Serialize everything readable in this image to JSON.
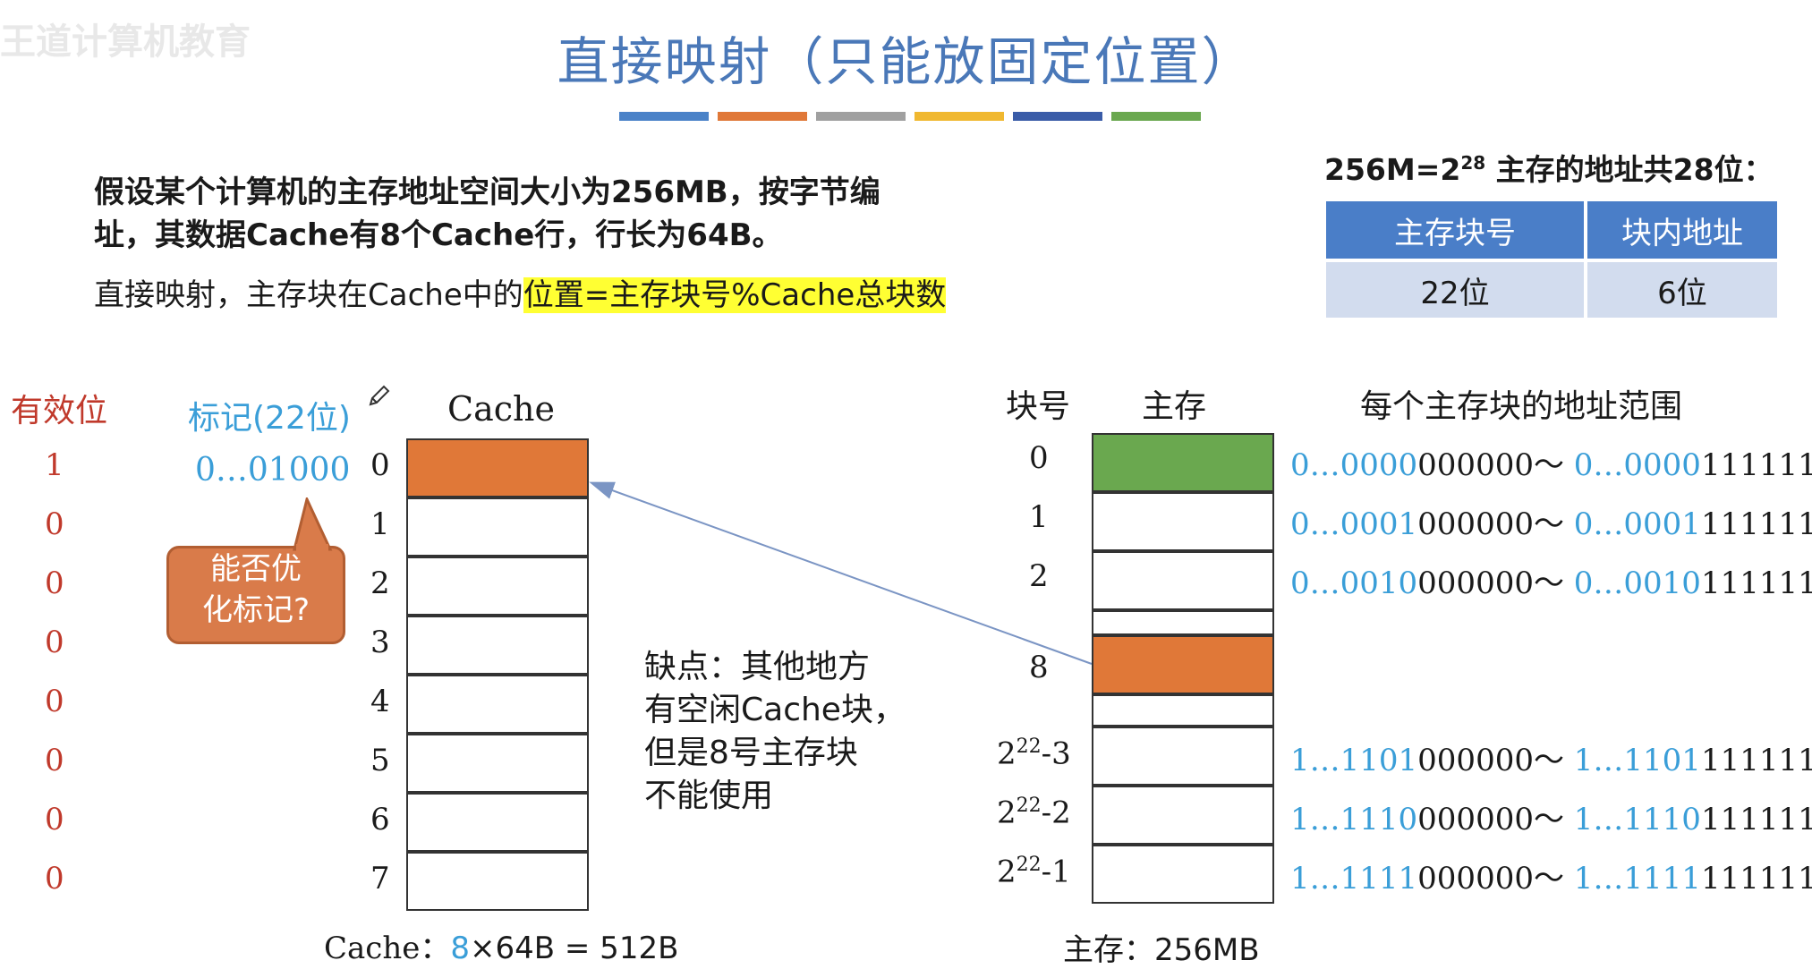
{
  "watermark": "王道计算机教育",
  "title": "直接映射（只能放固定位置）",
  "colors": {
    "bar1": "#4a82c8",
    "bar2": "#e07838",
    "bar3": "#a0a0a0",
    "bar4": "#f0b830",
    "bar5": "#3a5ca8",
    "bar6": "#6aa84f",
    "cache_highlight": "#e07838",
    "mem_block0": "#6aa84f",
    "mem_block8": "#e07838"
  },
  "problem": {
    "line1": "假设某个计算机的主存地址空间大小为256MB，按字节编",
    "line2": "址，其数据Cache有8个Cache行，行长为64B。",
    "line3_prefix": "直接映射，主存块在Cache中的",
    "line3_highlight": "位置=主存块号%Cache总块数"
  },
  "address": {
    "title_pre": "256M=2",
    "title_exp": "28",
    "title_post": " 主存的地址共28位：",
    "headers": [
      "主存块号",
      "块内地址"
    ],
    "values": [
      "22位",
      "6位"
    ]
  },
  "cache": {
    "valid_label": "有效位",
    "tag_label": "标记(22位)",
    "title": "Cache",
    "valid_bits": [
      "1",
      "0",
      "0",
      "0",
      "0",
      "0",
      "0",
      "0"
    ],
    "row_numbers": [
      "0",
      "1",
      "2",
      "3",
      "4",
      "5",
      "6",
      "7"
    ],
    "tag0": "0…01000",
    "callout": [
      "能否优",
      "化标记?"
    ],
    "size_label": "Cache：",
    "size_blue": "8",
    "size_rest": "×64B = 512B"
  },
  "note": [
    "缺点：其他地方",
    "有空闲Cache块，",
    "但是8号主存块",
    "不能使用"
  ],
  "memory": {
    "block_label": "块号",
    "title": "主存",
    "range_title": "每个主存块的地址范围",
    "block_numbers": [
      "0",
      "1",
      "2",
      "8"
    ],
    "block_numbers_pow": [
      {
        "base": "2",
        "exp": "22",
        "suffix": "-3"
      },
      {
        "base": "2",
        "exp": "22",
        "suffix": "-2"
      },
      {
        "base": "2",
        "exp": "22",
        "suffix": "-1"
      }
    ],
    "ranges": [
      {
        "b1": "0…0000",
        "r1": "000000～ ",
        "b2": "0…0000",
        "r2": "111111"
      },
      {
        "b1": "0…0001",
        "r1": "000000～ ",
        "b2": "0…0001",
        "r2": "111111"
      },
      {
        "b1": "0…0010",
        "r1": "000000～ ",
        "b2": "0…0010",
        "r2": "111111"
      },
      {
        "b1": "1…1101",
        "r1": "000000～ ",
        "b2": "1…1101",
        "r2": "111111"
      },
      {
        "b1": "1…1110",
        "r1": "000000～ ",
        "b2": "1…1110",
        "r2": "111111"
      },
      {
        "b1": "1…1111",
        "r1": "000000～ ",
        "b2": "1…1111",
        "r2": "111111"
      }
    ],
    "size_label": "主存：256MB"
  }
}
